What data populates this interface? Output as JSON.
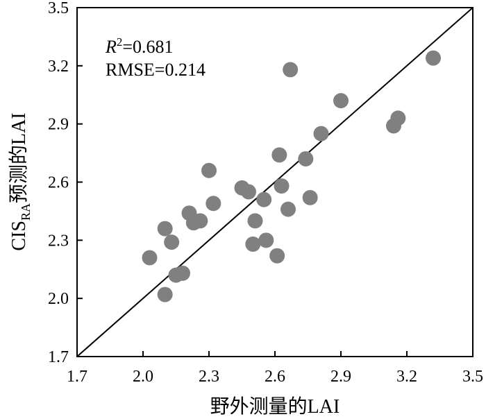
{
  "chart_data": {
    "type": "scatter",
    "xlabel": "野外测量的LAI",
    "ylabel": {
      "prefix": "CIS",
      "subscript": "RA",
      "suffix": "预测的LAI"
    },
    "xlim": [
      1.7,
      3.5
    ],
    "ylim": [
      1.7,
      3.5
    ],
    "xticks": [
      "1.7",
      "2.0",
      "2.3",
      "2.6",
      "2.9",
      "3.2",
      "3.5"
    ],
    "yticks": [
      "1.7",
      "2.0",
      "2.3",
      "2.6",
      "2.9",
      "3.2",
      "3.5"
    ],
    "reference_line": "1:1",
    "grid": false,
    "annotations": {
      "r2_symbol": "R",
      "r2_exponent": "2",
      "r2_value": "=0.681",
      "rmse": "RMSE=0.214"
    },
    "marker_color": "#808080",
    "points": [
      {
        "x": 2.03,
        "y": 2.21
      },
      {
        "x": 2.1,
        "y": 2.02
      },
      {
        "x": 2.1,
        "y": 2.36
      },
      {
        "x": 2.13,
        "y": 2.29
      },
      {
        "x": 2.15,
        "y": 2.12
      },
      {
        "x": 2.18,
        "y": 2.13
      },
      {
        "x": 2.21,
        "y": 2.44
      },
      {
        "x": 2.23,
        "y": 2.39
      },
      {
        "x": 2.26,
        "y": 2.4
      },
      {
        "x": 2.3,
        "y": 2.66
      },
      {
        "x": 2.32,
        "y": 2.49
      },
      {
        "x": 2.45,
        "y": 2.57
      },
      {
        "x": 2.48,
        "y": 2.55
      },
      {
        "x": 2.5,
        "y": 2.28
      },
      {
        "x": 2.51,
        "y": 2.4
      },
      {
        "x": 2.55,
        "y": 2.51
      },
      {
        "x": 2.56,
        "y": 2.3
      },
      {
        "x": 2.61,
        "y": 2.22
      },
      {
        "x": 2.62,
        "y": 2.74
      },
      {
        "x": 2.63,
        "y": 2.58
      },
      {
        "x": 2.66,
        "y": 2.46
      },
      {
        "x": 2.67,
        "y": 3.18
      },
      {
        "x": 2.74,
        "y": 2.72
      },
      {
        "x": 2.76,
        "y": 2.52
      },
      {
        "x": 2.81,
        "y": 2.85
      },
      {
        "x": 2.9,
        "y": 3.02
      },
      {
        "x": 3.14,
        "y": 2.89
      },
      {
        "x": 3.16,
        "y": 2.93
      },
      {
        "x": 3.32,
        "y": 3.24
      }
    ]
  }
}
